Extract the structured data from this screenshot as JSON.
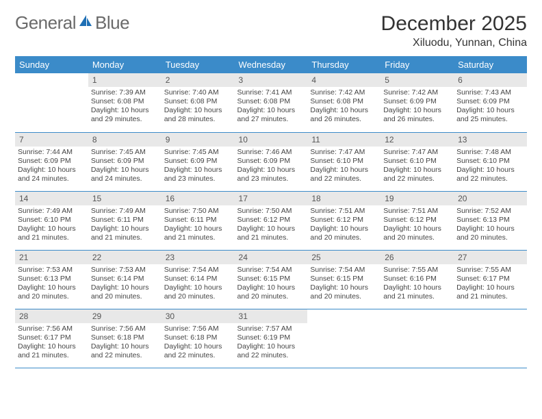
{
  "logo": {
    "text1": "General",
    "text2": "Blue"
  },
  "header": {
    "month_title": "December 2025",
    "location": "Xiluodu, Yunnan, China"
  },
  "colors": {
    "header_bg": "#3b8bc9",
    "header_fg": "#ffffff",
    "daynum_bg": "#e8e8e8",
    "row_border": "#3b8bc9",
    "logo_accent": "#1e6fb5",
    "logo_gray": "#6a6a6a"
  },
  "weekdays": [
    "Sunday",
    "Monday",
    "Tuesday",
    "Wednesday",
    "Thursday",
    "Friday",
    "Saturday"
  ],
  "weeks": [
    [
      null,
      {
        "n": "1",
        "sr": "Sunrise: 7:39 AM",
        "ss": "Sunset: 6:08 PM",
        "dl": "Daylight: 10 hours and 29 minutes."
      },
      {
        "n": "2",
        "sr": "Sunrise: 7:40 AM",
        "ss": "Sunset: 6:08 PM",
        "dl": "Daylight: 10 hours and 28 minutes."
      },
      {
        "n": "3",
        "sr": "Sunrise: 7:41 AM",
        "ss": "Sunset: 6:08 PM",
        "dl": "Daylight: 10 hours and 27 minutes."
      },
      {
        "n": "4",
        "sr": "Sunrise: 7:42 AM",
        "ss": "Sunset: 6:08 PM",
        "dl": "Daylight: 10 hours and 26 minutes."
      },
      {
        "n": "5",
        "sr": "Sunrise: 7:42 AM",
        "ss": "Sunset: 6:09 PM",
        "dl": "Daylight: 10 hours and 26 minutes."
      },
      {
        "n": "6",
        "sr": "Sunrise: 7:43 AM",
        "ss": "Sunset: 6:09 PM",
        "dl": "Daylight: 10 hours and 25 minutes."
      }
    ],
    [
      {
        "n": "7",
        "sr": "Sunrise: 7:44 AM",
        "ss": "Sunset: 6:09 PM",
        "dl": "Daylight: 10 hours and 24 minutes."
      },
      {
        "n": "8",
        "sr": "Sunrise: 7:45 AM",
        "ss": "Sunset: 6:09 PM",
        "dl": "Daylight: 10 hours and 24 minutes."
      },
      {
        "n": "9",
        "sr": "Sunrise: 7:45 AM",
        "ss": "Sunset: 6:09 PM",
        "dl": "Daylight: 10 hours and 23 minutes."
      },
      {
        "n": "10",
        "sr": "Sunrise: 7:46 AM",
        "ss": "Sunset: 6:09 PM",
        "dl": "Daylight: 10 hours and 23 minutes."
      },
      {
        "n": "11",
        "sr": "Sunrise: 7:47 AM",
        "ss": "Sunset: 6:10 PM",
        "dl": "Daylight: 10 hours and 22 minutes."
      },
      {
        "n": "12",
        "sr": "Sunrise: 7:47 AM",
        "ss": "Sunset: 6:10 PM",
        "dl": "Daylight: 10 hours and 22 minutes."
      },
      {
        "n": "13",
        "sr": "Sunrise: 7:48 AM",
        "ss": "Sunset: 6:10 PM",
        "dl": "Daylight: 10 hours and 22 minutes."
      }
    ],
    [
      {
        "n": "14",
        "sr": "Sunrise: 7:49 AM",
        "ss": "Sunset: 6:10 PM",
        "dl": "Daylight: 10 hours and 21 minutes."
      },
      {
        "n": "15",
        "sr": "Sunrise: 7:49 AM",
        "ss": "Sunset: 6:11 PM",
        "dl": "Daylight: 10 hours and 21 minutes."
      },
      {
        "n": "16",
        "sr": "Sunrise: 7:50 AM",
        "ss": "Sunset: 6:11 PM",
        "dl": "Daylight: 10 hours and 21 minutes."
      },
      {
        "n": "17",
        "sr": "Sunrise: 7:50 AM",
        "ss": "Sunset: 6:12 PM",
        "dl": "Daylight: 10 hours and 21 minutes."
      },
      {
        "n": "18",
        "sr": "Sunrise: 7:51 AM",
        "ss": "Sunset: 6:12 PM",
        "dl": "Daylight: 10 hours and 20 minutes."
      },
      {
        "n": "19",
        "sr": "Sunrise: 7:51 AM",
        "ss": "Sunset: 6:12 PM",
        "dl": "Daylight: 10 hours and 20 minutes."
      },
      {
        "n": "20",
        "sr": "Sunrise: 7:52 AM",
        "ss": "Sunset: 6:13 PM",
        "dl": "Daylight: 10 hours and 20 minutes."
      }
    ],
    [
      {
        "n": "21",
        "sr": "Sunrise: 7:53 AM",
        "ss": "Sunset: 6:13 PM",
        "dl": "Daylight: 10 hours and 20 minutes."
      },
      {
        "n": "22",
        "sr": "Sunrise: 7:53 AM",
        "ss": "Sunset: 6:14 PM",
        "dl": "Daylight: 10 hours and 20 minutes."
      },
      {
        "n": "23",
        "sr": "Sunrise: 7:54 AM",
        "ss": "Sunset: 6:14 PM",
        "dl": "Daylight: 10 hours and 20 minutes."
      },
      {
        "n": "24",
        "sr": "Sunrise: 7:54 AM",
        "ss": "Sunset: 6:15 PM",
        "dl": "Daylight: 10 hours and 20 minutes."
      },
      {
        "n": "25",
        "sr": "Sunrise: 7:54 AM",
        "ss": "Sunset: 6:15 PM",
        "dl": "Daylight: 10 hours and 20 minutes."
      },
      {
        "n": "26",
        "sr": "Sunrise: 7:55 AM",
        "ss": "Sunset: 6:16 PM",
        "dl": "Daylight: 10 hours and 21 minutes."
      },
      {
        "n": "27",
        "sr": "Sunrise: 7:55 AM",
        "ss": "Sunset: 6:17 PM",
        "dl": "Daylight: 10 hours and 21 minutes."
      }
    ],
    [
      {
        "n": "28",
        "sr": "Sunrise: 7:56 AM",
        "ss": "Sunset: 6:17 PM",
        "dl": "Daylight: 10 hours and 21 minutes."
      },
      {
        "n": "29",
        "sr": "Sunrise: 7:56 AM",
        "ss": "Sunset: 6:18 PM",
        "dl": "Daylight: 10 hours and 22 minutes."
      },
      {
        "n": "30",
        "sr": "Sunrise: 7:56 AM",
        "ss": "Sunset: 6:18 PM",
        "dl": "Daylight: 10 hours and 22 minutes."
      },
      {
        "n": "31",
        "sr": "Sunrise: 7:57 AM",
        "ss": "Sunset: 6:19 PM",
        "dl": "Daylight: 10 hours and 22 minutes."
      },
      null,
      null,
      null
    ]
  ]
}
